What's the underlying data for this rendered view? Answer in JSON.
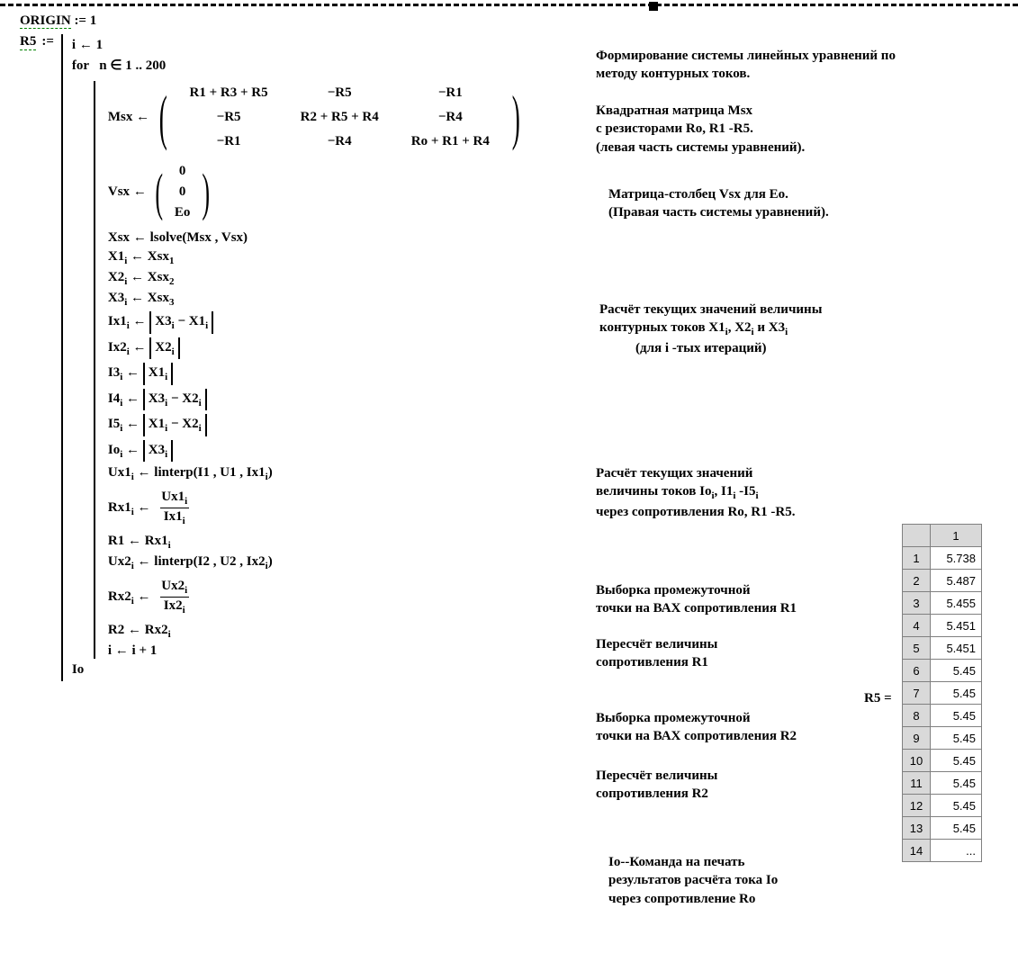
{
  "origin": {
    "label": "ORIGIN",
    "assign": ":=",
    "value": "1"
  },
  "r5def": {
    "label": "R5",
    "assign": ":="
  },
  "prog": {
    "init": {
      "var": "i",
      "arrow": "←",
      "val": "1"
    },
    "for": {
      "kw": "for",
      "cond": "n ∈ 1 .. 200"
    },
    "msx": {
      "lhs": "Msx",
      "arrow": "←",
      "row1": [
        "R1 + R3 + R5",
        "−R5",
        "−R1"
      ],
      "row2": [
        "−R5",
        "R2 + R5 + R4",
        "−R4"
      ],
      "row3": [
        "−R1",
        "−R4",
        "Ro + R1 + R4"
      ]
    },
    "vsx": {
      "lhs": "Vsx",
      "arrow": "←",
      "rows": [
        "0",
        "0",
        "Eo"
      ]
    },
    "xsx": {
      "lhs": "Xsx",
      "arrow": "←",
      "rhs": "lsolve(Msx , Vsx)"
    },
    "x1": {
      "lhs_v": "X1",
      "lhs_s": "i",
      "arrow": "←",
      "rhs_v": "Xsx",
      "rhs_s": "1"
    },
    "x2": {
      "lhs_v": "X2",
      "lhs_s": "i",
      "arrow": "←",
      "rhs_v": "Xsx",
      "rhs_s": "2"
    },
    "x3": {
      "lhs_v": "X3",
      "lhs_s": "i",
      "arrow": "←",
      "rhs_v": "Xsx",
      "rhs_s": "3"
    },
    "ix1": {
      "lhs_v": "Ix1",
      "lhs_s": "i",
      "a": "X3",
      "as": "i",
      "op": "−",
      "b": "X1",
      "bs": "i"
    },
    "ix2": {
      "lhs_v": "Ix2",
      "lhs_s": "i",
      "a": "X2",
      "as": "i"
    },
    "i3": {
      "lhs_v": "I3",
      "lhs_s": "i",
      "a": "X1",
      "as": "i"
    },
    "i4": {
      "lhs_v": "I4",
      "lhs_s": "i",
      "a": "X3",
      "as": "i",
      "op": "−",
      "b": "X2",
      "bs": "i"
    },
    "i5": {
      "lhs_v": "I5",
      "lhs_s": "i",
      "a": "X1",
      "as": "i",
      "op": "−",
      "b": "X2",
      "bs": "i"
    },
    "io": {
      "lhs_v": "Io",
      "lhs_s": "i",
      "a": "X3",
      "as": "i"
    },
    "ux1": {
      "lhs_v": "Ux1",
      "lhs_s": "i",
      "arrow": "←",
      "fn": "linterp",
      "args": "(I1 , U1 , Ix1",
      "arg_s": "i",
      "close": ")"
    },
    "rx1": {
      "lhs_v": "Rx1",
      "lhs_s": "i",
      "num_v": "Ux1",
      "num_s": "i",
      "den_v": "Ix1",
      "den_s": "i"
    },
    "r1set": {
      "lhs": "R1",
      "arrow": "←",
      "rhs_v": "Rx1",
      "rhs_s": "i"
    },
    "ux2": {
      "lhs_v": "Ux2",
      "lhs_s": "i",
      "arrow": "←",
      "fn": "linterp",
      "args": "(I2 , U2 , Ix2",
      "arg_s": "i",
      "close": ")"
    },
    "rx2": {
      "lhs_v": "Rx2",
      "lhs_s": "i",
      "num_v": "Ux2",
      "num_s": "i",
      "den_v": "Ix2",
      "den_s": "i"
    },
    "r2set": {
      "lhs": "R2",
      "arrow": "←",
      "rhs_v": "Rx2",
      "rhs_s": "i"
    },
    "inc": {
      "text": "i ← i + 1"
    },
    "ret": {
      "text": "Io"
    }
  },
  "annotations": {
    "a1": "Формирование системы линейных уравнений по методу контурных токов.",
    "a2": "Квадратная  матрица  Msx\nс резисторами Ro, R1 -R5.\n(левая  часть системы уравнений).",
    "a3": "Матрица-столбец  Vsx  для Ео.\n(Правая  часть системы уравнений).",
    "a4_l1": "Расчёт текущих значений величины",
    "a4_l2a": "контурных токов X1",
    "a4_l2b": ",  X2",
    "a4_l2c": " и X3",
    "a4_l3": "(для i -тых  итераций)",
    "a5_l1": "Расчёт текущих значений",
    "a5_l2a": "величины  токов Io",
    "a5_l2b": ",  I1",
    "a5_l2c": " -I5",
    "a5_l3": "через сопротивления Ro, R1 -R5.",
    "a6": "Выборка промежуточной\nточки на ВАХ сопротивления R1",
    "a7": "Пересчёт  величины\nсопротивления  R1",
    "a8": "Выборка промежуточной\nточки на ВАХ сопротивления R2",
    "a9": "Пересчёт  величины\nсопротивления  R2",
    "a10": "Io--Команда  на печать\nрезультатов расчёта  тока Io\nчерез сопротивление Ro"
  },
  "result": {
    "label": "R5 =",
    "col_header": "1",
    "rows": [
      {
        "idx": "1",
        "val": "5.738"
      },
      {
        "idx": "2",
        "val": "5.487"
      },
      {
        "idx": "3",
        "val": "5.455"
      },
      {
        "idx": "4",
        "val": "5.451"
      },
      {
        "idx": "5",
        "val": "5.451"
      },
      {
        "idx": "6",
        "val": "5.45"
      },
      {
        "idx": "7",
        "val": "5.45"
      },
      {
        "idx": "8",
        "val": "5.45"
      },
      {
        "idx": "9",
        "val": "5.45"
      },
      {
        "idx": "10",
        "val": "5.45"
      },
      {
        "idx": "11",
        "val": "5.45"
      },
      {
        "idx": "12",
        "val": "5.45"
      },
      {
        "idx": "13",
        "val": "5.45"
      },
      {
        "idx": "14",
        "val": "..."
      }
    ]
  }
}
